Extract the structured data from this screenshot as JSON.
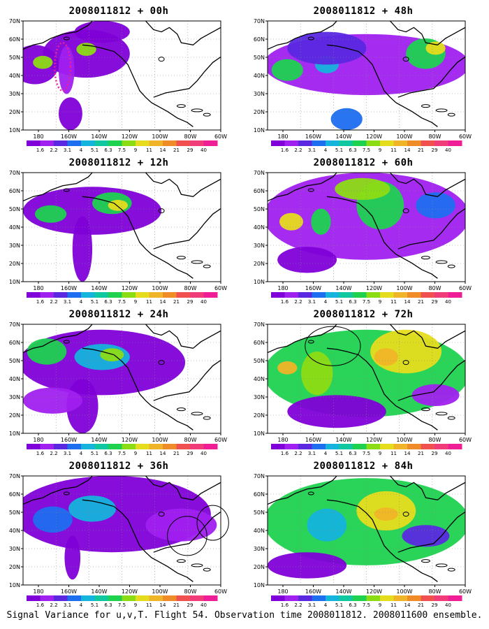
{
  "panels": [
    {
      "title": "2008011812 + 00h"
    },
    {
      "title": "2008011812 + 48h"
    },
    {
      "title": "2008011812 + 12h"
    },
    {
      "title": "2008011812 + 60h"
    },
    {
      "title": "2008011812 + 24h"
    },
    {
      "title": "2008011812 + 72h"
    },
    {
      "title": "2008011812 + 36h"
    },
    {
      "title": "2008011812 + 84h"
    }
  ],
  "axes": {
    "lat_labels": [
      "70N",
      "60N",
      "50N",
      "40N",
      "30N",
      "20N",
      "10N"
    ],
    "lon_labels": [
      "180",
      "160W",
      "140W",
      "120W",
      "100W",
      "80W",
      "60W"
    ]
  },
  "colorbar": {
    "labels": [
      "1.6",
      "2.2",
      "3.1",
      "4",
      "5.1",
      "6.3",
      "7.5",
      "9",
      "11",
      "14",
      "21",
      "29",
      "40"
    ],
    "colors": [
      "#7f00d8",
      "#a020f0",
      "#5a28e0",
      "#1e6ef0",
      "#14b4dc",
      "#10c8a0",
      "#1ed250",
      "#8cdc14",
      "#e6dc1e",
      "#f0b428",
      "#f08c28",
      "#f05050",
      "#f03c78",
      "#f01e96"
    ]
  },
  "footer": {
    "caption": "Signal Variance for u,v,T. Flight 54. Observation time 2008011812. 2008011600 ensemble."
  }
}
